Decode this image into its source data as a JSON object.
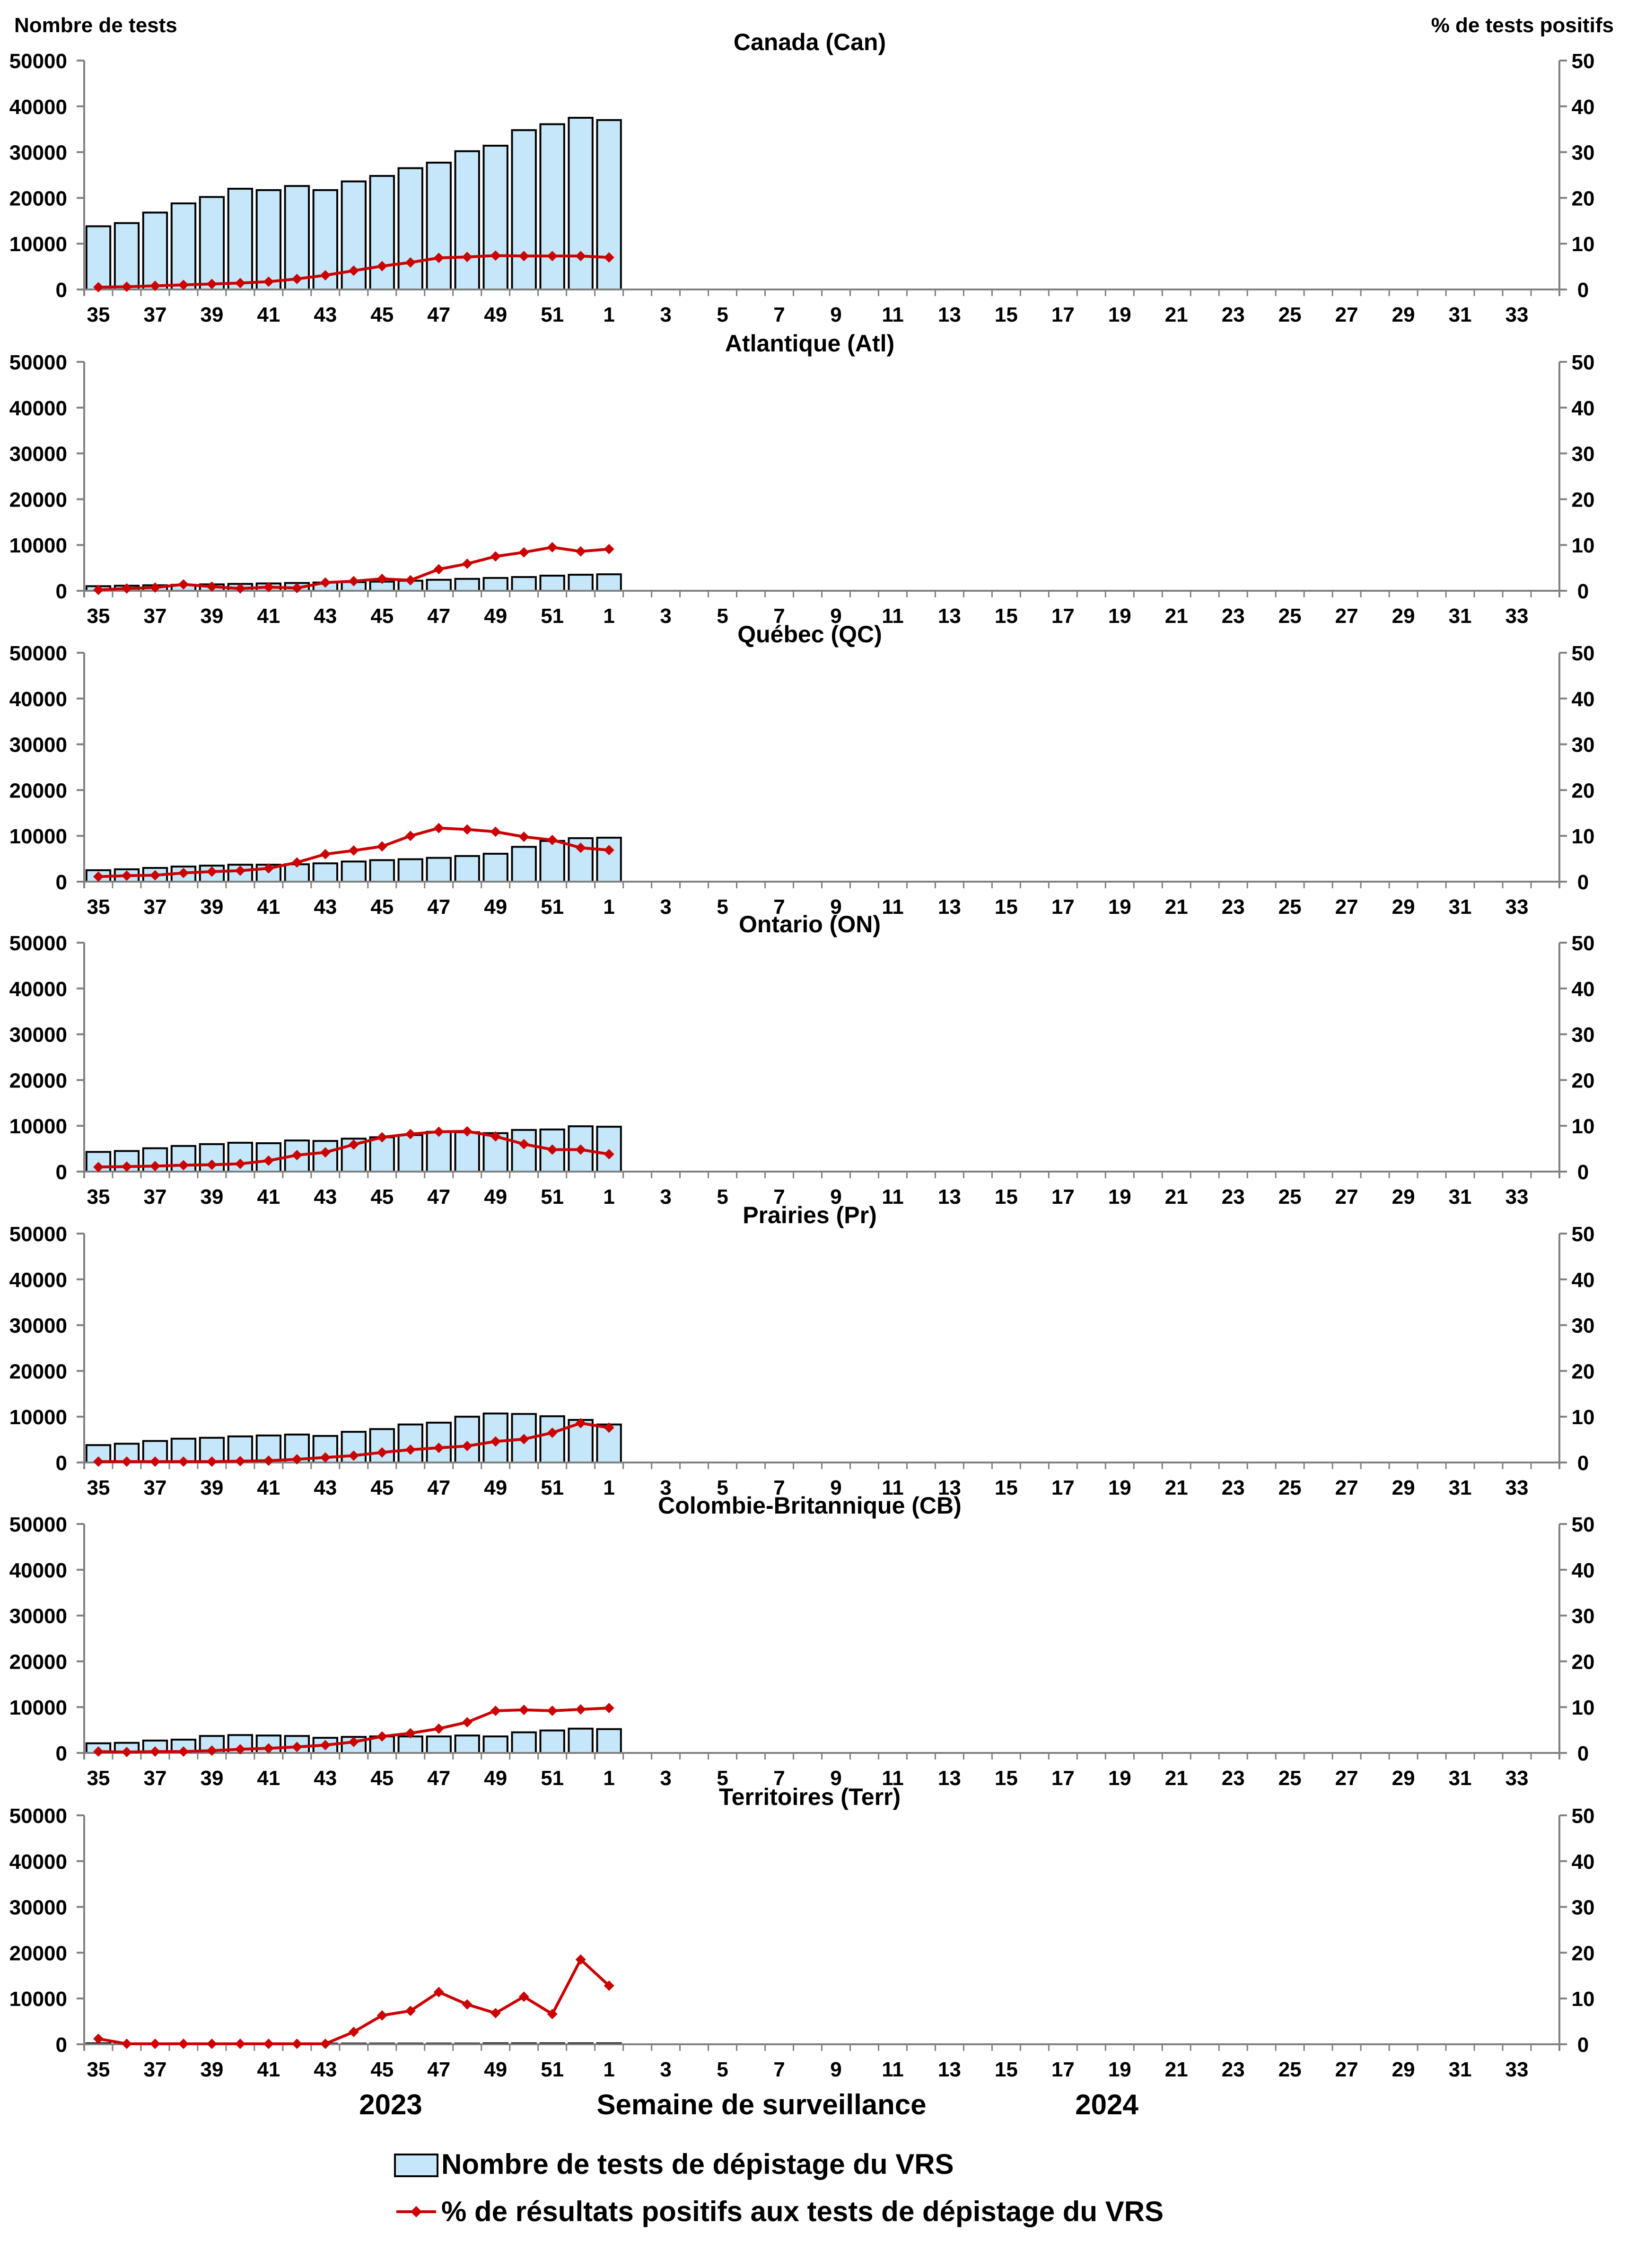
{
  "figure": {
    "left_axis_title": "Nombre de tests",
    "right_axis_title": "% de tests positifs",
    "x_axis_title": "Semaine de surveillance",
    "year_labels": [
      "2023",
      "2024"
    ],
    "legend": {
      "bars": "Nombre de tests de dépistage du VRS",
      "line": "% de résultats positifs aux tests de dépistage du VRS"
    },
    "colors": {
      "bar_fill": "#c6e7fa",
      "bar_stroke": "#000000",
      "line": "#cc0000",
      "axis": "#808080"
    }
  },
  "chart_data": [
    {
      "type": "bar+line",
      "title": "Canada (Can)",
      "weeks": [
        35,
        36,
        37,
        38,
        39,
        40,
        41,
        42,
        43,
        44,
        45,
        46,
        47,
        48,
        49,
        50,
        51,
        52,
        1
      ],
      "x_ticks": [
        35,
        37,
        39,
        41,
        43,
        45,
        47,
        49,
        51,
        1,
        3,
        5,
        7,
        9,
        11,
        13,
        15,
        17,
        19,
        21,
        23,
        25,
        27,
        29,
        31,
        33
      ],
      "tests": [
        13800,
        14500,
        16800,
        18800,
        20200,
        22000,
        21700,
        22600,
        21700,
        23600,
        24800,
        26500,
        27700,
        30200,
        31400,
        34800,
        36100,
        37500,
        37000
      ],
      "pct_positive": [
        0.5,
        0.6,
        0.8,
        1.0,
        1.2,
        1.4,
        1.7,
        2.3,
        3.1,
        4.1,
        5.1,
        5.9,
        6.9,
        7.1,
        7.4,
        7.3,
        7.3,
        7.3,
        7.0
      ],
      "ylim_left": [
        0,
        50000
      ],
      "yticks_left": [
        0,
        10000,
        20000,
        30000,
        40000,
        50000
      ],
      "ylim_right": [
        0,
        50
      ],
      "yticks_right": [
        0,
        10,
        20,
        30,
        40,
        50
      ]
    },
    {
      "type": "bar+line",
      "title": "Atlantique (Atl)",
      "weeks": [
        35,
        36,
        37,
        38,
        39,
        40,
        41,
        42,
        43,
        44,
        45,
        46,
        47,
        48,
        49,
        50,
        51,
        52,
        1
      ],
      "x_ticks": [
        35,
        37,
        39,
        41,
        43,
        45,
        47,
        49,
        51,
        1,
        3,
        5,
        7,
        9,
        11,
        13,
        15,
        17,
        19,
        21,
        23,
        25,
        27,
        29,
        31,
        33
      ],
      "tests": [
        1000,
        1100,
        1200,
        1300,
        1400,
        1500,
        1600,
        1700,
        1800,
        1900,
        2000,
        2200,
        2400,
        2600,
        2800,
        3000,
        3300,
        3500,
        3600
      ],
      "pct_positive": [
        0.2,
        0.5,
        0.7,
        1.4,
        0.9,
        0.5,
        0.8,
        0.6,
        1.8,
        2.1,
        2.6,
        2.3,
        4.7,
        5.9,
        7.5,
        8.4,
        9.5,
        8.6,
        9.1
      ],
      "ylim_left": [
        0,
        50000
      ],
      "yticks_left": [
        0,
        10000,
        20000,
        30000,
        40000,
        50000
      ],
      "ylim_right": [
        0,
        50
      ],
      "yticks_right": [
        0,
        10,
        20,
        30,
        40,
        50
      ]
    },
    {
      "type": "bar+line",
      "title": "Québec (QC)",
      "weeks": [
        35,
        36,
        37,
        38,
        39,
        40,
        41,
        42,
        43,
        44,
        45,
        46,
        47,
        48,
        49,
        50,
        51,
        52,
        1
      ],
      "x_ticks": [
        35,
        37,
        39,
        41,
        43,
        45,
        47,
        49,
        51,
        1,
        3,
        5,
        7,
        9,
        11,
        13,
        15,
        17,
        19,
        21,
        23,
        25,
        27,
        29,
        31,
        33
      ],
      "tests": [
        2500,
        2700,
        3000,
        3300,
        3500,
        3700,
        3700,
        3800,
        4000,
        4400,
        4700,
        4900,
        5200,
        5600,
        6100,
        7600,
        8900,
        9500,
        9600
      ],
      "pct_positive": [
        1.1,
        1.3,
        1.4,
        1.9,
        2.2,
        2.4,
        2.9,
        4.2,
        6.0,
        6.8,
        7.7,
        10.0,
        11.7,
        11.4,
        10.9,
        9.8,
        9.1,
        7.4,
        6.9
      ],
      "ylim_left": [
        0,
        50000
      ],
      "yticks_left": [
        0,
        10000,
        20000,
        30000,
        40000,
        50000
      ],
      "ylim_right": [
        0,
        50
      ],
      "yticks_right": [
        0,
        10,
        20,
        30,
        40,
        50
      ]
    },
    {
      "type": "bar+line",
      "title": "Ontario (ON)",
      "weeks": [
        35,
        36,
        37,
        38,
        39,
        40,
        41,
        42,
        43,
        44,
        45,
        46,
        47,
        48,
        49,
        50,
        51,
        52,
        1
      ],
      "x_ticks": [
        35,
        37,
        39,
        41,
        43,
        45,
        47,
        49,
        51,
        1,
        3,
        5,
        7,
        9,
        11,
        13,
        15,
        17,
        19,
        21,
        23,
        25,
        27,
        29,
        31,
        33
      ],
      "tests": [
        4300,
        4500,
        5100,
        5600,
        6000,
        6300,
        6200,
        6800,
        6700,
        7200,
        7500,
        8000,
        8700,
        8600,
        8400,
        9100,
        9200,
        9900,
        9800
      ],
      "pct_positive": [
        1.0,
        1.1,
        1.2,
        1.4,
        1.5,
        1.7,
        2.4,
        3.6,
        4.2,
        5.9,
        7.5,
        8.2,
        8.7,
        8.8,
        7.7,
        6.0,
        4.8,
        4.8,
        3.8
      ],
      "ylim_left": [
        0,
        50000
      ],
      "yticks_left": [
        0,
        10000,
        20000,
        30000,
        40000,
        50000
      ],
      "ylim_right": [
        0,
        50
      ],
      "yticks_right": [
        0,
        10,
        20,
        30,
        40,
        50
      ]
    },
    {
      "type": "bar+line",
      "title": "Prairies (Pr)",
      "weeks": [
        35,
        36,
        37,
        38,
        39,
        40,
        41,
        42,
        43,
        44,
        45,
        46,
        47,
        48,
        49,
        50,
        51,
        52,
        1
      ],
      "x_ticks": [
        35,
        37,
        39,
        41,
        43,
        45,
        47,
        49,
        51,
        1,
        3,
        5,
        7,
        9,
        11,
        13,
        15,
        17,
        19,
        21,
        23,
        25,
        27,
        29,
        31,
        33
      ],
      "tests": [
        3800,
        4100,
        4700,
        5200,
        5400,
        5700,
        5900,
        6100,
        5800,
        6700,
        7300,
        8300,
        8700,
        10000,
        10700,
        10600,
        10100,
        9300,
        8300
      ],
      "pct_positive": [
        0.2,
        0.2,
        0.2,
        0.2,
        0.2,
        0.3,
        0.4,
        0.7,
        1.1,
        1.5,
        2.2,
        2.8,
        3.2,
        3.6,
        4.6,
        5.1,
        6.5,
        8.6,
        7.6
      ],
      "ylim_left": [
        0,
        50000
      ],
      "yticks_left": [
        0,
        10000,
        20000,
        30000,
        40000,
        50000
      ],
      "ylim_right": [
        0,
        50
      ],
      "yticks_right": [
        0,
        10,
        20,
        30,
        40,
        50
      ]
    },
    {
      "type": "bar+line",
      "title": "Colombie-Britannique (CB)",
      "weeks": [
        35,
        36,
        37,
        38,
        39,
        40,
        41,
        42,
        43,
        44,
        45,
        46,
        47,
        48,
        49,
        50,
        51,
        52,
        1
      ],
      "x_ticks": [
        35,
        37,
        39,
        41,
        43,
        45,
        47,
        49,
        51,
        1,
        3,
        5,
        7,
        9,
        11,
        13,
        15,
        17,
        19,
        21,
        23,
        25,
        27,
        29,
        31,
        33
      ],
      "tests": [
        2100,
        2200,
        2700,
        2900,
        3700,
        3900,
        3800,
        3700,
        3300,
        3500,
        3600,
        3600,
        3600,
        3800,
        3600,
        4500,
        4900,
        5300,
        5200
      ],
      "pct_positive": [
        0.3,
        0.2,
        0.3,
        0.3,
        0.5,
        0.8,
        1.0,
        1.3,
        1.7,
        2.4,
        3.6,
        4.3,
        5.3,
        6.7,
        9.2,
        9.4,
        9.2,
        9.5,
        9.8
      ],
      "ylim_left": [
        0,
        50000
      ],
      "yticks_left": [
        0,
        10000,
        20000,
        30000,
        40000,
        50000
      ],
      "ylim_right": [
        0,
        50
      ],
      "yticks_right": [
        0,
        10,
        20,
        30,
        40,
        50
      ]
    },
    {
      "type": "bar+line",
      "title": "Territoires (Terr)",
      "weeks": [
        35,
        36,
        37,
        38,
        39,
        40,
        41,
        42,
        43,
        44,
        45,
        46,
        47,
        48,
        49,
        50,
        51,
        52,
        1
      ],
      "x_ticks": [
        35,
        37,
        39,
        41,
        43,
        45,
        47,
        49,
        51,
        1,
        3,
        5,
        7,
        9,
        11,
        13,
        15,
        17,
        19,
        21,
        23,
        25,
        27,
        29,
        31,
        33
      ],
      "tests": [
        200,
        150,
        150,
        150,
        150,
        150,
        150,
        150,
        150,
        150,
        150,
        150,
        150,
        150,
        200,
        200,
        200,
        200,
        200
      ],
      "pct_positive": [
        1.2,
        0.1,
        0.1,
        0.1,
        0.1,
        0.1,
        0.1,
        0.1,
        0.1,
        2.7,
        6.3,
        7.3,
        11.4,
        8.7,
        6.8,
        10.4,
        6.6,
        18.5,
        12.8
      ],
      "ylim_left": [
        0,
        50000
      ],
      "yticks_left": [
        0,
        10000,
        20000,
        30000,
        40000,
        50000
      ],
      "ylim_right": [
        0,
        50
      ],
      "yticks_right": [
        0,
        10,
        20,
        30,
        40,
        50
      ]
    }
  ]
}
